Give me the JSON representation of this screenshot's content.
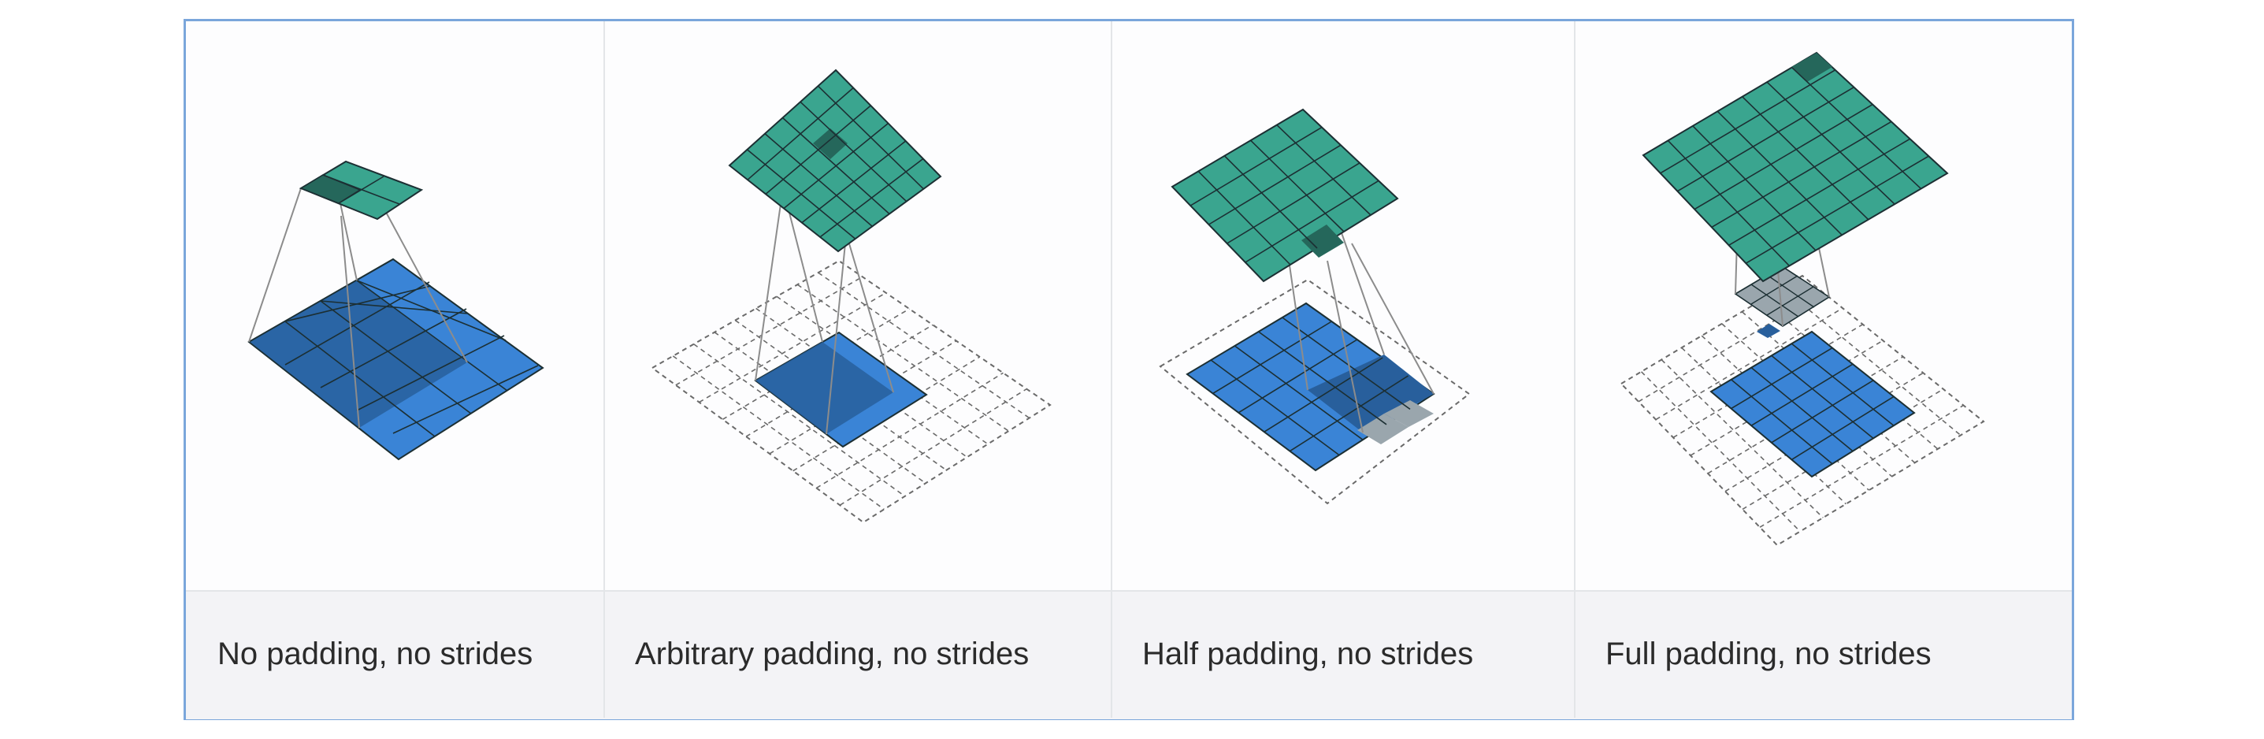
{
  "captions": [
    "No padding, no strides",
    "Arbitrary padding, no strides",
    "Half padding, no strides",
    "Full padding, no strides"
  ],
  "colors": {
    "teal": "#3aa58f",
    "teal_dark": "#25675b",
    "blue": "#3a84d6",
    "blue_dark": "#285f9c",
    "gray": "#9aa6ad",
    "grid_line": "#1c2f33",
    "padding_line": "#6a6a6a",
    "caption_band": "#f3f3f6",
    "border": "#7aa6db"
  },
  "diagrams": [
    {
      "name": "no-padding-no-strides",
      "input_size": 4,
      "padding": 0,
      "output_size": 2
    },
    {
      "name": "arbitrary-padding-no-strides",
      "input_size": 5,
      "padding": 2,
      "output_size": 6
    },
    {
      "name": "half-padding-no-strides",
      "input_size": 5,
      "padding": 1,
      "output_size": 5
    },
    {
      "name": "full-padding-no-strides",
      "input_size": 5,
      "padding": 2,
      "output_size": 7
    }
  ]
}
